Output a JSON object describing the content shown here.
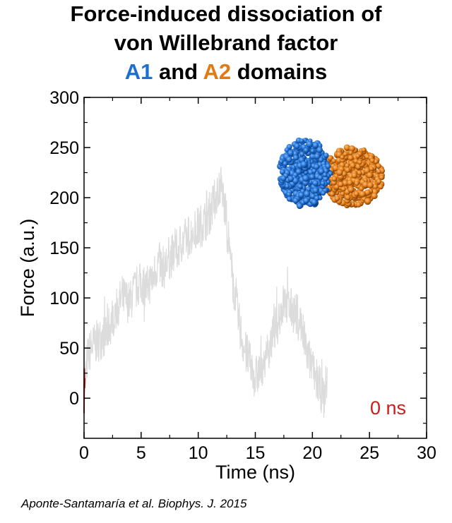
{
  "title": {
    "line1": "Force-induced dissociation of",
    "line2": "von Willebrand factor",
    "a1_label": "A1",
    "and_label": " and ",
    "a2_label": "A2",
    "domains_label": " domains"
  },
  "colors": {
    "a1": "#1f6fd1",
    "a2": "#e07a14",
    "trace": "#dcdcdc",
    "current_trace": "#d11a1a"
  },
  "time_label": "0 ns",
  "citation": "Aponte-Santamaría et al. Biophys. J. 2015",
  "chart_data": {
    "type": "line",
    "xlabel": "Time (ns)",
    "ylabel": "Force (a.u.)",
    "xlim": [
      0,
      30
    ],
    "ylim": [
      -40,
      300
    ],
    "xticks": [
      0,
      5,
      10,
      15,
      20,
      25,
      30
    ],
    "yticks": [
      0,
      50,
      100,
      150,
      200,
      250,
      300
    ],
    "grid": false,
    "series": [
      {
        "x": [
          0,
          0.3,
          0.6,
          1.0,
          1.5,
          2.0,
          2.5,
          3.0,
          3.5,
          4.0,
          4.5,
          5.0,
          5.5,
          6.0,
          6.5,
          7.0,
          7.5,
          8.0,
          8.5,
          9.0,
          9.5,
          10.0,
          10.5,
          11.0,
          11.5,
          12.0,
          12.5,
          13.0,
          13.5,
          14.0,
          14.5,
          15.0,
          15.5,
          16.0,
          16.5,
          17.0,
          17.5,
          18.0,
          18.5,
          19.0,
          19.5,
          20.0,
          20.5,
          21.0,
          21.3
        ],
        "values": [
          5,
          40,
          50,
          55,
          60,
          65,
          80,
          95,
          100,
          95,
          110,
          115,
          110,
          120,
          135,
          130,
          140,
          145,
          155,
          160,
          165,
          170,
          175,
          185,
          200,
          215,
          175,
          120,
          80,
          50,
          35,
          20,
          30,
          45,
          60,
          80,
          95,
          90,
          85,
          75,
          45,
          30,
          15,
          0,
          20
        ]
      }
    ],
    "current_series": {
      "x": [
        0,
        0.02,
        0.05,
        0.08
      ],
      "values": [
        -15,
        30,
        10,
        20
      ]
    }
  }
}
